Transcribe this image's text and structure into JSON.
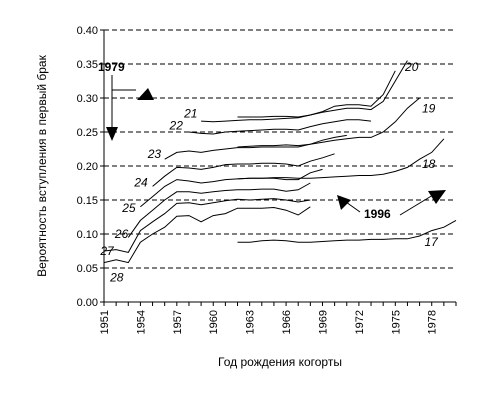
{
  "chart_data": {
    "type": "line",
    "title": "",
    "xlabel": "Год рождения когорты",
    "ylabel": "Вероятность вступления в первый брак",
    "xlim": [
      1951,
      1980
    ],
    "ylim": [
      0,
      0.4
    ],
    "x_ticks": [
      "1951",
      "1954",
      "1957",
      "1960",
      "1963",
      "1966",
      "1969",
      "1972",
      "1975",
      "1978"
    ],
    "y_ticks": [
      "0.00",
      "0.05",
      "0.10",
      "0.15",
      "0.20",
      "0.25",
      "0.30",
      "0.35",
      "0.40"
    ],
    "grid": "horizontal dashed",
    "line_color": "#000000",
    "annotations": [
      {
        "text": "1979",
        "arrow_direction": "up"
      },
      {
        "text": "1996",
        "arrow_direction": "up"
      }
    ],
    "series": [
      {
        "name": "17",
        "x": [
          1962,
          1963,
          1964,
          1965,
          1966,
          1967,
          1968,
          1969,
          1970,
          1971,
          1972,
          1973,
          1974,
          1975,
          1976,
          1977,
          1978,
          1979,
          1980
        ],
        "y": [
          0.088,
          0.088,
          0.09,
          0.091,
          0.09,
          0.088,
          0.088,
          0.089,
          0.09,
          0.091,
          0.091,
          0.092,
          0.092,
          0.093,
          0.093,
          0.097,
          0.105,
          0.11,
          0.12
        ]
      },
      {
        "name": "18",
        "x": [
          1962,
          1963,
          1964,
          1965,
          1966,
          1967,
          1968,
          1969,
          1970,
          1971,
          1972,
          1973,
          1974,
          1975,
          1976,
          1977,
          1978,
          1979
        ],
        "y": [
          0.181,
          0.182,
          0.182,
          0.183,
          0.183,
          0.182,
          0.182,
          0.183,
          0.184,
          0.185,
          0.186,
          0.186,
          0.188,
          0.192,
          0.198,
          0.21,
          0.22,
          0.24
        ]
      },
      {
        "name": "19",
        "x": [
          1962,
          1963,
          1964,
          1965,
          1966,
          1967,
          1968,
          1969,
          1970,
          1971,
          1972,
          1973,
          1974,
          1975,
          1976,
          1977
        ],
        "y": [
          0.228,
          0.229,
          0.23,
          0.23,
          0.231,
          0.23,
          0.232,
          0.235,
          0.238,
          0.24,
          0.242,
          0.242,
          0.25,
          0.265,
          0.285,
          0.3
        ]
      },
      {
        "name": "20",
        "x": [
          1962,
          1963,
          1964,
          1965,
          1966,
          1967,
          1968,
          1969,
          1970,
          1971,
          1972,
          1973,
          1974,
          1975,
          1976
        ],
        "y": [
          0.272,
          0.272,
          0.272,
          0.273,
          0.273,
          0.272,
          0.275,
          0.279,
          0.282,
          0.285,
          0.285,
          0.283,
          0.295,
          0.325,
          0.355
        ]
      },
      {
        "name": "21",
        "x": [
          1959,
          1960,
          1961,
          1962,
          1963,
          1964,
          1965,
          1966,
          1967,
          1968,
          1969,
          1970,
          1971,
          1972,
          1973,
          1974,
          1975
        ],
        "y": [
          0.266,
          0.265,
          0.266,
          0.267,
          0.268,
          0.268,
          0.269,
          0.27,
          0.271,
          0.275,
          0.28,
          0.288,
          0.29,
          0.29,
          0.288,
          0.305,
          0.34
        ]
      },
      {
        "name": "22",
        "x": [
          1958,
          1959,
          1960,
          1961,
          1962,
          1963,
          1964,
          1965,
          1966,
          1967,
          1968,
          1969,
          1970,
          1971,
          1972,
          1973
        ],
        "y": [
          0.25,
          0.248,
          0.247,
          0.25,
          0.251,
          0.252,
          0.253,
          0.254,
          0.254,
          0.253,
          0.258,
          0.262,
          0.265,
          0.268,
          0.268,
          0.266
        ]
      },
      {
        "name": "23",
        "x": [
          1956,
          1957,
          1958,
          1959,
          1960,
          1961,
          1962,
          1963,
          1964,
          1965,
          1966,
          1967,
          1968,
          1969,
          1970,
          1971
        ],
        "y": [
          0.21,
          0.22,
          0.222,
          0.22,
          0.223,
          0.225,
          0.227,
          0.227,
          0.228,
          0.228,
          0.228,
          0.228,
          0.232,
          0.238,
          0.242,
          0.245
        ]
      },
      {
        "name": "24",
        "x": [
          1955,
          1956,
          1957,
          1958,
          1959,
          1960,
          1961,
          1962,
          1963,
          1964,
          1965,
          1966,
          1967,
          1968,
          1969,
          1970
        ],
        "y": [
          0.17,
          0.185,
          0.198,
          0.197,
          0.195,
          0.198,
          0.202,
          0.203,
          0.203,
          0.204,
          0.204,
          0.203,
          0.2,
          0.207,
          0.212,
          0.218
        ]
      },
      {
        "name": "25",
        "x": [
          1954,
          1955,
          1956,
          1957,
          1958,
          1959,
          1960,
          1961,
          1962,
          1963,
          1964,
          1965,
          1966,
          1967,
          1968,
          1969
        ],
        "y": [
          0.14,
          0.155,
          0.17,
          0.18,
          0.178,
          0.175,
          0.177,
          0.18,
          0.181,
          0.182,
          0.182,
          0.182,
          0.18,
          0.18,
          0.19,
          0.195
        ]
      },
      {
        "name": "26",
        "x": [
          1953,
          1954,
          1955,
          1956,
          1957,
          1958,
          1959,
          1960,
          1961,
          1962,
          1963,
          1964,
          1965,
          1966,
          1967,
          1968
        ],
        "y": [
          0.095,
          0.12,
          0.135,
          0.15,
          0.162,
          0.162,
          0.16,
          0.162,
          0.164,
          0.165,
          0.165,
          0.166,
          0.166,
          0.163,
          0.165,
          0.175
        ]
      },
      {
        "name": "27",
        "x": [
          1951,
          1952,
          1953,
          1954,
          1955,
          1956,
          1957,
          1958,
          1959,
          1960,
          1961,
          1962,
          1963,
          1964,
          1965,
          1966,
          1967,
          1968
        ],
        "y": [
          0.075,
          0.077,
          0.073,
          0.105,
          0.118,
          0.13,
          0.145,
          0.146,
          0.143,
          0.146,
          0.149,
          0.151,
          0.15,
          0.151,
          0.152,
          0.15,
          0.147,
          0.15
        ]
      },
      {
        "name": "28",
        "x": [
          1951,
          1952,
          1953,
          1954,
          1955,
          1956,
          1957,
          1958,
          1959,
          1960,
          1961,
          1962,
          1963,
          1964,
          1965,
          1966,
          1967,
          1968
        ],
        "y": [
          0.058,
          0.062,
          0.058,
          0.088,
          0.1,
          0.11,
          0.126,
          0.127,
          0.118,
          0.127,
          0.13,
          0.138,
          0.138,
          0.138,
          0.139,
          0.135,
          0.128,
          0.14
        ]
      }
    ]
  }
}
